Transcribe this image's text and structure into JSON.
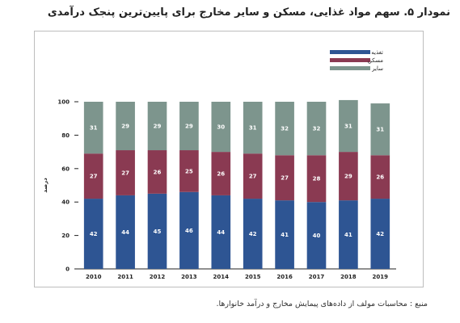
{
  "title": "نمودار ۵. سهم مواد غذایی، مسکن و سایر مخارج برای پایین‌ترین پنجک درآمدی",
  "source": "منبع : محاسبات مولف از داده‌های پیمایش مخارج و درآمد خانوارها.",
  "colors": {
    "food": "#2e5593",
    "housing": "#8a3a52",
    "other": "#7d958d"
  },
  "chart_data": {
    "type": "bar",
    "stacked": true,
    "title": "نمودار ۵. سهم مواد غذایی، مسکن و سایر مخارج برای پایین‌ترین پنجک درآمدی",
    "xlabel": "",
    "ylabel": "درصد",
    "ylim": [
      0,
      100
    ],
    "yticks": [
      0,
      20,
      40,
      60,
      80,
      100
    ],
    "grid": false,
    "legend_position": "top-right",
    "categories": [
      "2010",
      "2011",
      "2012",
      "2013",
      "2014",
      "2015",
      "2016",
      "2017",
      "2018",
      "2019"
    ],
    "series": [
      {
        "name": "تغذیه",
        "key": "food",
        "values": [
          42,
          44,
          45,
          46,
          44,
          42,
          41,
          40,
          41,
          42
        ]
      },
      {
        "name": "مسکن",
        "key": "housing",
        "values": [
          27,
          27,
          26,
          25,
          26,
          27,
          27,
          28,
          29,
          26
        ]
      },
      {
        "name": "سایر",
        "key": "other",
        "values": [
          31,
          29,
          29,
          29,
          30,
          31,
          32,
          32,
          31,
          31
        ]
      }
    ]
  }
}
